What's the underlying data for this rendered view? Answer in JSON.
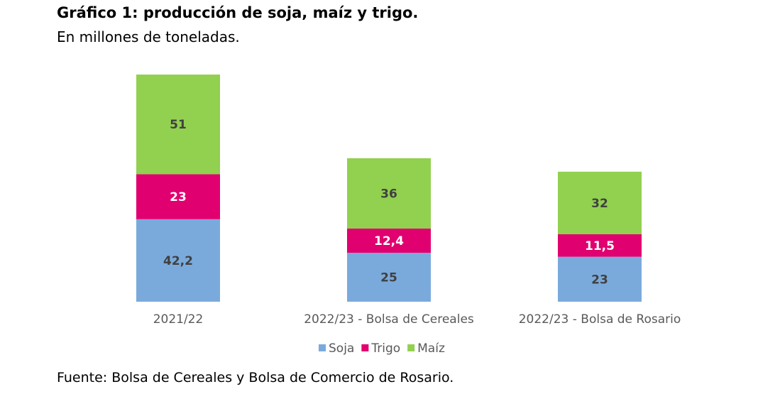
{
  "title": "Gráfico 1: producción de soja, maíz y trigo.",
  "subtitle": "En millones de toneladas.",
  "source": "Fuente: Bolsa de Cereales y Bolsa de Comercio de Rosario.",
  "chart_data": {
    "type": "bar",
    "stacked": true,
    "categories": [
      "2021/22",
      "2022/23 - Bolsa de Cereales",
      "2022/23 - Bolsa de Rosario"
    ],
    "series": [
      {
        "name": "Soja",
        "values": [
          42.2,
          25,
          23
        ],
        "labels": [
          "42,2",
          "25",
          "23"
        ],
        "color": "#7aaadc",
        "label_color": "#404040"
      },
      {
        "name": "Trigo",
        "values": [
          23,
          12.4,
          11.5
        ],
        "labels": [
          "23",
          "12,4",
          "11,5"
        ],
        "color": "#e0006f",
        "label_color": "#ffffff"
      },
      {
        "name": "Maíz",
        "values": [
          51,
          36,
          32
        ],
        "labels": [
          "51",
          "36",
          "32"
        ],
        "color": "#92d050",
        "label_color": "#404040"
      }
    ],
    "legend_position": "bottom",
    "grid": false
  }
}
